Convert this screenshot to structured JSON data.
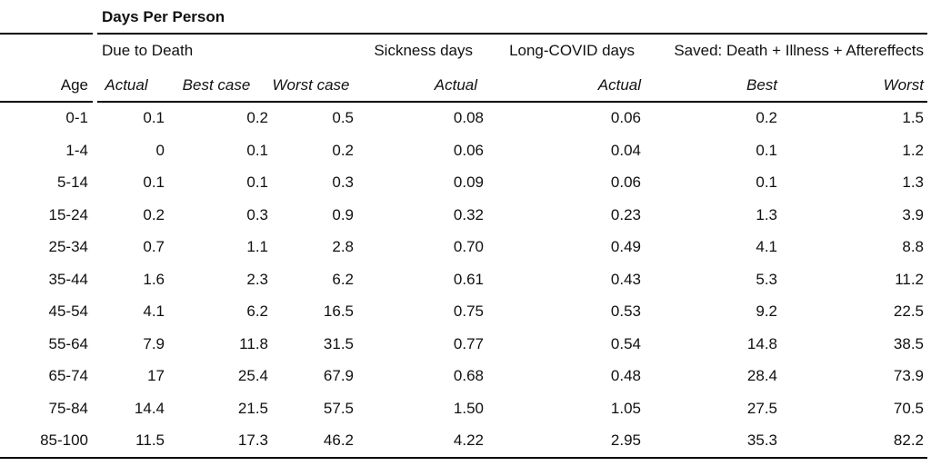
{
  "colors": {
    "text": "#111111",
    "rule": "#000000",
    "background": "#ffffff"
  },
  "chart_data": {
    "type": "table",
    "title": "Days Per Person",
    "column_groups": [
      {
        "label": "Due to Death",
        "span": 3
      },
      {
        "label": "Sickness days",
        "span": 1
      },
      {
        "label": "Long-COVID days",
        "span": 1
      },
      {
        "label": "Saved: Death + Illness + Aftereffects",
        "span": 2
      }
    ],
    "columns": [
      "Age",
      "Actual",
      "Best case",
      "Worst case",
      "Actual",
      "Actual",
      "Best",
      "Worst"
    ],
    "rows": [
      [
        "0-1",
        "0.1",
        "0.2",
        "0.5",
        "0.08",
        "0.06",
        "0.2",
        "1.5"
      ],
      [
        "1-4",
        "0",
        "0.1",
        "0.2",
        "0.06",
        "0.04",
        "0.1",
        "1.2"
      ],
      [
        "5-14",
        "0.1",
        "0.1",
        "0.3",
        "0.09",
        "0.06",
        "0.1",
        "1.3"
      ],
      [
        "15-24",
        "0.2",
        "0.3",
        "0.9",
        "0.32",
        "0.23",
        "1.3",
        "3.9"
      ],
      [
        "25-34",
        "0.7",
        "1.1",
        "2.8",
        "0.70",
        "0.49",
        "4.1",
        "8.8"
      ],
      [
        "35-44",
        "1.6",
        "2.3",
        "6.2",
        "0.61",
        "0.43",
        "5.3",
        "11.2"
      ],
      [
        "45-54",
        "4.1",
        "6.2",
        "16.5",
        "0.75",
        "0.53",
        "9.2",
        "22.5"
      ],
      [
        "55-64",
        "7.9",
        "11.8",
        "31.5",
        "0.77",
        "0.54",
        "14.8",
        "38.5"
      ],
      [
        "65-74",
        "17",
        "25.4",
        "67.9",
        "0.68",
        "0.48",
        "28.4",
        "73.9"
      ],
      [
        "75-84",
        "14.4",
        "21.5",
        "57.5",
        "1.50",
        "1.05",
        "27.5",
        "70.5"
      ],
      [
        "85-100",
        "11.5",
        "17.3",
        "46.2",
        "4.22",
        "2.95",
        "35.3",
        "82.2"
      ]
    ]
  }
}
